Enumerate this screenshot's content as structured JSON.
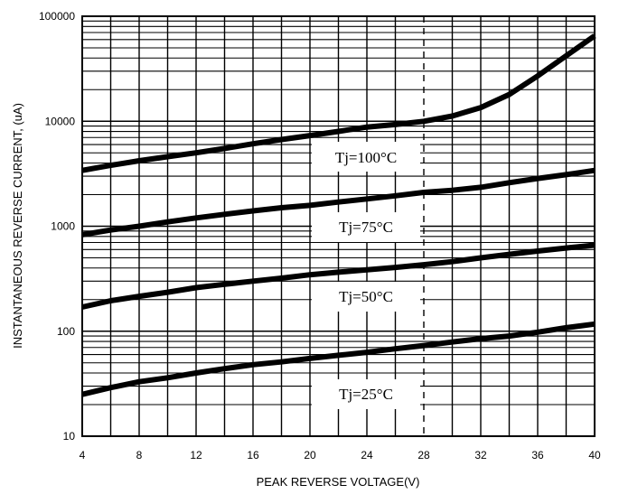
{
  "chart_data": {
    "type": "line",
    "xlabel": "PEAK REVERSE VOLTAGE(V)",
    "ylabel": "INSTANTANEOUS REVERSE CURRENT, (uA)",
    "xlim": [
      4,
      40
    ],
    "ylim": [
      10,
      100000
    ],
    "yscale": "log",
    "x_ticks": [
      4,
      8,
      12,
      16,
      20,
      24,
      28,
      32,
      36,
      40
    ],
    "x_tick_labels": [
      "4",
      "8",
      "12",
      "16",
      "20",
      "24",
      "28",
      "32",
      "36",
      "40"
    ],
    "y_ticks": [
      10,
      100,
      1000,
      10000,
      100000
    ],
    "y_tick_labels": [
      "10",
      "100",
      "1000",
      "10000",
      "100000"
    ],
    "grid": true,
    "series": [
      {
        "name": "Tj=100°C",
        "x": [
          4,
          6,
          8,
          10,
          12,
          14,
          16,
          18,
          20,
          22,
          24,
          26,
          28,
          30,
          32,
          34,
          36,
          38,
          40
        ],
        "values": [
          3400,
          3800,
          4200,
          4600,
          5000,
          5500,
          6100,
          6700,
          7300,
          8000,
          8800,
          9300,
          10000,
          11200,
          13500,
          18000,
          27000,
          42000,
          65000
        ]
      },
      {
        "name": "Tj=75°C",
        "x": [
          4,
          6,
          8,
          10,
          12,
          14,
          16,
          18,
          20,
          22,
          24,
          26,
          28,
          30,
          32,
          34,
          36,
          38,
          40
        ],
        "values": [
          830,
          920,
          1000,
          1100,
          1200,
          1300,
          1400,
          1500,
          1580,
          1700,
          1820,
          1950,
          2100,
          2200,
          2350,
          2600,
          2850,
          3100,
          3400
        ]
      },
      {
        "name": "Tj=50°C",
        "x": [
          4,
          6,
          8,
          10,
          12,
          14,
          16,
          18,
          20,
          22,
          24,
          26,
          28,
          30,
          32,
          34,
          36,
          38,
          40
        ],
        "values": [
          170,
          195,
          215,
          235,
          260,
          280,
          300,
          320,
          345,
          365,
          385,
          405,
          430,
          460,
          500,
          540,
          580,
          620,
          660
        ]
      },
      {
        "name": "Tj=25°C",
        "x": [
          4,
          6,
          8,
          10,
          12,
          14,
          16,
          18,
          20,
          22,
          24,
          26,
          28,
          30,
          32,
          34,
          36,
          38,
          40
        ],
        "values": [
          25,
          29,
          33,
          36,
          40,
          44,
          48,
          51,
          55,
          59,
          63,
          68,
          73,
          79,
          85,
          90,
          98,
          108,
          117
        ]
      }
    ]
  }
}
